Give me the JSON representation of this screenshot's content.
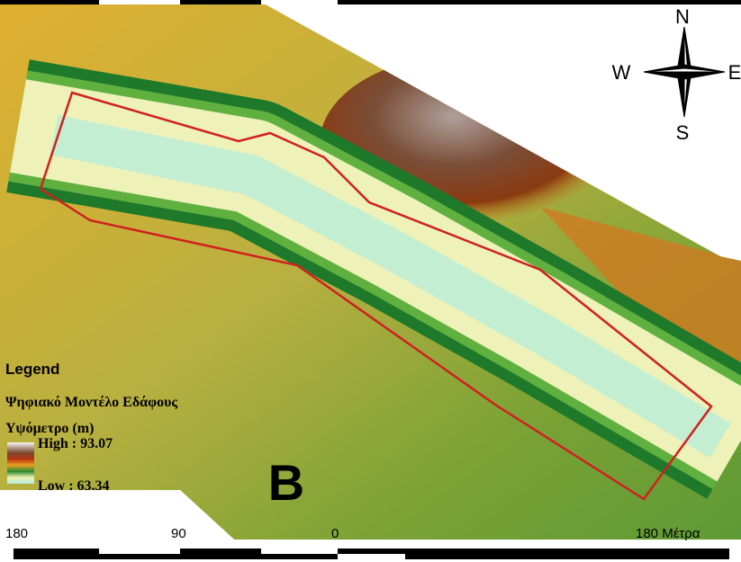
{
  "legend": {
    "title": "Legend",
    "layer": "Ψηφιακό Μοντέλο Εδάφους",
    "field": "Υψόμετρο (m)",
    "high": "High : 93.07",
    "low": "Low : 63.34"
  },
  "panel_label": "B",
  "compass": {
    "north": "N",
    "south": "S",
    "west": "W",
    "east": "E"
  },
  "scale_bar": {
    "labels": [
      "180",
      "90",
      "0",
      "180 Μέτρα"
    ]
  }
}
